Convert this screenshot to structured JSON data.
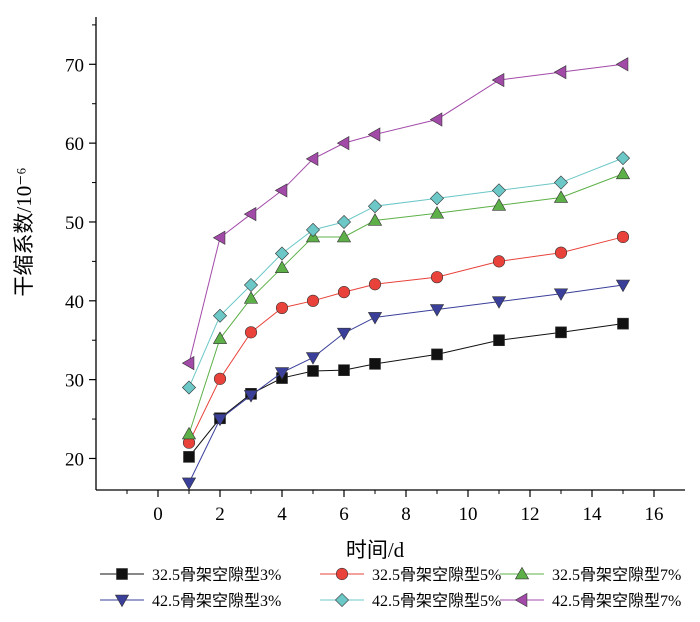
{
  "chart_data": {
    "type": "line",
    "title": "",
    "xlabel": "时间/d",
    "ylabel": "干缩系数/10⁻⁶",
    "xlim": [
      -2,
      17
    ],
    "ylim": [
      16,
      76
    ],
    "xticks": [
      0,
      2,
      4,
      6,
      8,
      10,
      12,
      14,
      16
    ],
    "yticks": [
      20,
      30,
      40,
      50,
      60,
      70
    ],
    "x": [
      1,
      2,
      3,
      4,
      5,
      6,
      7,
      9,
      11,
      13,
      15
    ],
    "legend_position": "bottom",
    "series": [
      {
        "name": "32.5骨架空隙型3%",
        "color": "#111111",
        "marker": "square",
        "values": [
          20.2,
          25.1,
          28.2,
          30.2,
          31.1,
          31.2,
          32.0,
          33.2,
          35.0,
          36.0,
          37.1
        ]
      },
      {
        "name": "32.5骨架空隙型5%",
        "color": "#e8423a",
        "marker": "circle",
        "values": [
          22.0,
          30.1,
          36.0,
          39.1,
          40.0,
          41.1,
          42.1,
          43.0,
          45.0,
          46.1,
          48.1
        ]
      },
      {
        "name": "32.5骨架空隙型7%",
        "color": "#5db048",
        "marker": "triangle-up",
        "values": [
          23.1,
          35.2,
          40.3,
          44.2,
          48.1,
          48.1,
          50.2,
          51.1,
          52.1,
          53.1,
          56.1
        ]
      },
      {
        "name": "42.5骨架空隙型3%",
        "color": "#3a3f9a",
        "marker": "triangle-down",
        "values": [
          16.9,
          25.0,
          28.0,
          30.9,
          32.8,
          35.9,
          37.9,
          38.9,
          39.9,
          40.9,
          42.0
        ]
      },
      {
        "name": "42.5骨架空隙型5%",
        "color": "#6cc7c7",
        "marker": "diamond",
        "values": [
          29.0,
          38.1,
          42.0,
          46.0,
          49.0,
          50.0,
          52.0,
          53.0,
          54.0,
          55.0,
          58.1
        ]
      },
      {
        "name": "42.5骨架空隙型7%",
        "color": "#a24aa8",
        "marker": "triangle-left",
        "values": [
          32.1,
          48.0,
          51.0,
          54.0,
          58.0,
          60.0,
          61.1,
          63.0,
          68.0,
          69.0,
          70.0
        ]
      }
    ]
  }
}
